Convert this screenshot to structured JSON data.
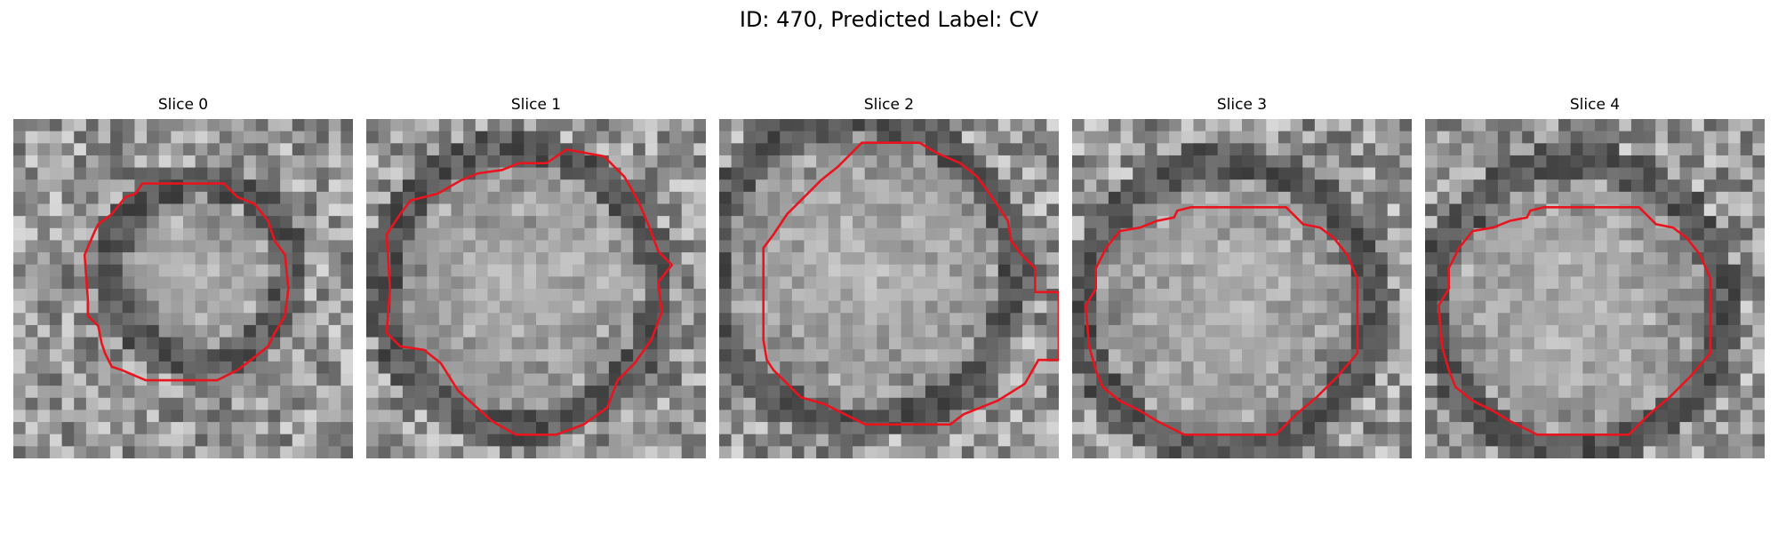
{
  "figure": {
    "title": "ID: 470, Predicted Label: CV",
    "overlay_color": "#e8141e",
    "image_style": "grayscale-pixelated"
  },
  "panels": [
    {
      "title": "Slice 0",
      "contour": [
        [
          0.38,
          0.19
        ],
        [
          0.62,
          0.19
        ],
        [
          0.66,
          0.23
        ],
        [
          0.71,
          0.25
        ],
        [
          0.75,
          0.3
        ],
        [
          0.77,
          0.36
        ],
        [
          0.8,
          0.4
        ],
        [
          0.81,
          0.5
        ],
        [
          0.8,
          0.58
        ],
        [
          0.77,
          0.63
        ],
        [
          0.75,
          0.67
        ],
        [
          0.7,
          0.71
        ],
        [
          0.66,
          0.74
        ],
        [
          0.62,
          0.76
        ],
        [
          0.6,
          0.77
        ],
        [
          0.39,
          0.77
        ],
        [
          0.32,
          0.74
        ],
        [
          0.29,
          0.73
        ],
        [
          0.27,
          0.69
        ],
        [
          0.26,
          0.66
        ],
        [
          0.25,
          0.61
        ],
        [
          0.22,
          0.58
        ],
        [
          0.22,
          0.54
        ],
        [
          0.21,
          0.4
        ],
        [
          0.24,
          0.33
        ],
        [
          0.25,
          0.31
        ],
        [
          0.29,
          0.28
        ],
        [
          0.33,
          0.23
        ],
        [
          0.36,
          0.22
        ]
      ]
    },
    {
      "title": "Slice 1",
      "contour": [
        [
          0.59,
          0.09
        ],
        [
          0.7,
          0.11
        ],
        [
          0.76,
          0.17
        ],
        [
          0.8,
          0.24
        ],
        [
          0.83,
          0.31
        ],
        [
          0.86,
          0.39
        ],
        [
          0.9,
          0.43
        ],
        [
          0.86,
          0.48
        ],
        [
          0.87,
          0.57
        ],
        [
          0.84,
          0.65
        ],
        [
          0.79,
          0.72
        ],
        [
          0.74,
          0.77
        ],
        [
          0.71,
          0.85
        ],
        [
          0.64,
          0.9
        ],
        [
          0.56,
          0.93
        ],
        [
          0.44,
          0.93
        ],
        [
          0.37,
          0.89
        ],
        [
          0.27,
          0.8
        ],
        [
          0.22,
          0.72
        ],
        [
          0.17,
          0.68
        ],
        [
          0.1,
          0.67
        ],
        [
          0.06,
          0.63
        ],
        [
          0.07,
          0.5
        ],
        [
          0.06,
          0.34
        ],
        [
          0.1,
          0.28
        ],
        [
          0.13,
          0.24
        ],
        [
          0.21,
          0.22
        ],
        [
          0.28,
          0.18
        ],
        [
          0.33,
          0.16
        ],
        [
          0.4,
          0.15
        ],
        [
          0.45,
          0.13
        ],
        [
          0.53,
          0.13
        ]
      ]
    },
    {
      "title": "Slice 2",
      "contour": [
        [
          0.42,
          0.07
        ],
        [
          0.59,
          0.07
        ],
        [
          0.64,
          0.1
        ],
        [
          0.71,
          0.13
        ],
        [
          0.76,
          0.17
        ],
        [
          0.81,
          0.24
        ],
        [
          0.85,
          0.3
        ],
        [
          0.86,
          0.36
        ],
        [
          0.89,
          0.4
        ],
        [
          0.93,
          0.44
        ],
        [
          0.93,
          0.51
        ],
        [
          1.0,
          0.51
        ],
        [
          1.0,
          0.71
        ],
        [
          0.94,
          0.71
        ],
        [
          0.9,
          0.78
        ],
        [
          0.82,
          0.83
        ],
        [
          0.72,
          0.87
        ],
        [
          0.68,
          0.9
        ],
        [
          0.43,
          0.9
        ],
        [
          0.37,
          0.87
        ],
        [
          0.31,
          0.84
        ],
        [
          0.24,
          0.82
        ],
        [
          0.19,
          0.77
        ],
        [
          0.16,
          0.74
        ],
        [
          0.14,
          0.71
        ],
        [
          0.13,
          0.65
        ],
        [
          0.13,
          0.38
        ],
        [
          0.16,
          0.34
        ],
        [
          0.2,
          0.28
        ],
        [
          0.25,
          0.23
        ],
        [
          0.3,
          0.18
        ],
        [
          0.35,
          0.14
        ],
        [
          0.39,
          0.1
        ]
      ]
    },
    {
      "title": "Slice 3",
      "contour": [
        [
          0.35,
          0.26
        ],
        [
          0.63,
          0.26
        ],
        [
          0.68,
          0.31
        ],
        [
          0.73,
          0.32
        ],
        [
          0.77,
          0.35
        ],
        [
          0.81,
          0.4
        ],
        [
          0.84,
          0.47
        ],
        [
          0.84,
          0.69
        ],
        [
          0.78,
          0.76
        ],
        [
          0.72,
          0.82
        ],
        [
          0.66,
          0.87
        ],
        [
          0.6,
          0.93
        ],
        [
          0.33,
          0.93
        ],
        [
          0.25,
          0.89
        ],
        [
          0.2,
          0.86
        ],
        [
          0.14,
          0.83
        ],
        [
          0.09,
          0.79
        ],
        [
          0.07,
          0.74
        ],
        [
          0.05,
          0.67
        ],
        [
          0.04,
          0.55
        ],
        [
          0.07,
          0.5
        ],
        [
          0.07,
          0.44
        ],
        [
          0.1,
          0.38
        ],
        [
          0.14,
          0.33
        ],
        [
          0.2,
          0.32
        ],
        [
          0.25,
          0.3
        ],
        [
          0.3,
          0.29
        ],
        [
          0.31,
          0.27
        ]
      ]
    },
    {
      "title": "Slice 4",
      "contour": [
        [
          0.35,
          0.26
        ],
        [
          0.63,
          0.26
        ],
        [
          0.68,
          0.31
        ],
        [
          0.73,
          0.32
        ],
        [
          0.77,
          0.35
        ],
        [
          0.81,
          0.4
        ],
        [
          0.84,
          0.47
        ],
        [
          0.84,
          0.69
        ],
        [
          0.78,
          0.76
        ],
        [
          0.72,
          0.82
        ],
        [
          0.66,
          0.87
        ],
        [
          0.6,
          0.93
        ],
        [
          0.33,
          0.93
        ],
        [
          0.25,
          0.89
        ],
        [
          0.2,
          0.86
        ],
        [
          0.14,
          0.83
        ],
        [
          0.09,
          0.79
        ],
        [
          0.07,
          0.74
        ],
        [
          0.05,
          0.67
        ],
        [
          0.04,
          0.55
        ],
        [
          0.07,
          0.5
        ],
        [
          0.07,
          0.44
        ],
        [
          0.1,
          0.38
        ],
        [
          0.14,
          0.33
        ],
        [
          0.2,
          0.32
        ],
        [
          0.25,
          0.3
        ],
        [
          0.3,
          0.29
        ],
        [
          0.31,
          0.27
        ]
      ]
    }
  ]
}
